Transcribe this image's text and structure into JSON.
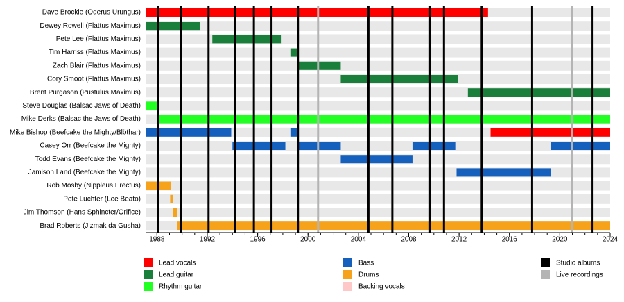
{
  "chart_data": {
    "type": "timeline",
    "xlim": [
      1987.1,
      2024
    ],
    "xticks": [
      1988,
      1992,
      1996,
      2000,
      2004,
      2008,
      2012,
      2016,
      2020,
      2024
    ],
    "roles": [
      {
        "name": "Lead vocals",
        "color": "#ff0000"
      },
      {
        "name": "Lead guitar",
        "color": "#1a7f3a"
      },
      {
        "name": "Rhythm guitar",
        "color": "#22ff22"
      },
      {
        "name": "Bass",
        "color": "#1560bd"
      },
      {
        "name": "Drums",
        "color": "#f7a21b"
      },
      {
        "name": "Backing vocals",
        "color": "#ffc8c8"
      }
    ],
    "events": [
      {
        "name": "Studio albums",
        "color": "#000000",
        "years": [
          1988.1,
          1989.9,
          1992.1,
          1994.2,
          1995.7,
          1997.1,
          1999.2,
          2004.8,
          2006.7,
          2009.7,
          2010.8,
          2013.8,
          2017.8,
          2022.6
        ]
      },
      {
        "name": "Live recordings",
        "color": "#b4b4b4",
        "years": [
          2000.8,
          2020.95
        ]
      }
    ],
    "members": [
      {
        "name": "Dave Brockie (Oderus Urungus)",
        "periods": [
          {
            "role": "Lead vocals",
            "start": 1987.1,
            "end": 2014.3
          }
        ]
      },
      {
        "name": "Dewey Rowell (Flattus Maximus)",
        "periods": [
          {
            "role": "Lead guitar",
            "start": 1987.1,
            "end": 1991.4
          }
        ]
      },
      {
        "name": "Pete Lee (Flattus Maximus)",
        "periods": [
          {
            "role": "Lead guitar",
            "start": 1992.4,
            "end": 1997.9
          }
        ]
      },
      {
        "name": "Tim Harriss (Flattus Maximus)",
        "periods": [
          {
            "role": "Lead guitar",
            "start": 1998.6,
            "end": 1999.2
          }
        ]
      },
      {
        "name": "Zach Blair (Flattus Maximus)",
        "periods": [
          {
            "role": "Lead guitar",
            "start": 1999.2,
            "end": 2002.6
          }
        ]
      },
      {
        "name": "Cory Smoot (Flattus Maximus)",
        "periods": [
          {
            "role": "Lead guitar",
            "start": 2002.6,
            "end": 2011.9
          }
        ]
      },
      {
        "name": "Brent Purgason (Pustulus Maximus)",
        "periods": [
          {
            "role": "Lead guitar",
            "start": 2012.7,
            "end": 2024
          }
        ]
      },
      {
        "name": "Steve Douglas (Balsac Jaws of Death)",
        "periods": [
          {
            "role": "Rhythm guitar",
            "start": 1987.1,
            "end": 1988.2
          }
        ]
      },
      {
        "name": "Mike Derks (Balsac the Jaws of Death)",
        "periods": [
          {
            "role": "Rhythm guitar",
            "start": 1988.2,
            "end": 2024
          }
        ]
      },
      {
        "name": "Mike Bishop (Beefcake the Mighty/Blöthar)",
        "periods": [
          {
            "role": "Bass",
            "start": 1987.1,
            "end": 1993.9
          },
          {
            "role": "Bass",
            "start": 1998.6,
            "end": 1999.2
          },
          {
            "role": "Lead vocals",
            "start": 2014.5,
            "end": 2024
          }
        ]
      },
      {
        "name": "Casey Orr (Beefcake the Mighty)",
        "periods": [
          {
            "role": "Bass",
            "start": 1994.0,
            "end": 1998.2
          },
          {
            "role": "Bass",
            "start": 1999.2,
            "end": 2002.6
          },
          {
            "role": "Bass",
            "start": 2008.3,
            "end": 2011.7
          },
          {
            "role": "Bass",
            "start": 2019.3,
            "end": 2024
          }
        ]
      },
      {
        "name": "Todd Evans (Beefcake the Mighty)",
        "periods": [
          {
            "role": "Bass",
            "start": 2002.6,
            "end": 2008.3
          }
        ]
      },
      {
        "name": "Jamison Land (Beefcake the Mighty)",
        "periods": [
          {
            "role": "Bass",
            "start": 2011.8,
            "end": 2019.3
          }
        ]
      },
      {
        "name": "Rob Mosby (Nippleus Erectus)",
        "periods": [
          {
            "role": "Drums",
            "start": 1987.1,
            "end": 1989.1
          }
        ]
      },
      {
        "name": "Pete Luchter (Lee Beato)",
        "periods": [
          {
            "role": "Drums",
            "start": 1989.05,
            "end": 1989.3
          }
        ]
      },
      {
        "name": "Jim Thomson (Hans Sphincter/Orifice)",
        "periods": [
          {
            "role": "Drums",
            "start": 1989.3,
            "end": 1989.6
          }
        ]
      },
      {
        "name": "Brad Roberts (Jizmak da Gusha)",
        "periods": [
          {
            "role": "Drums",
            "start": 1989.6,
            "end": 2024
          }
        ]
      }
    ]
  }
}
